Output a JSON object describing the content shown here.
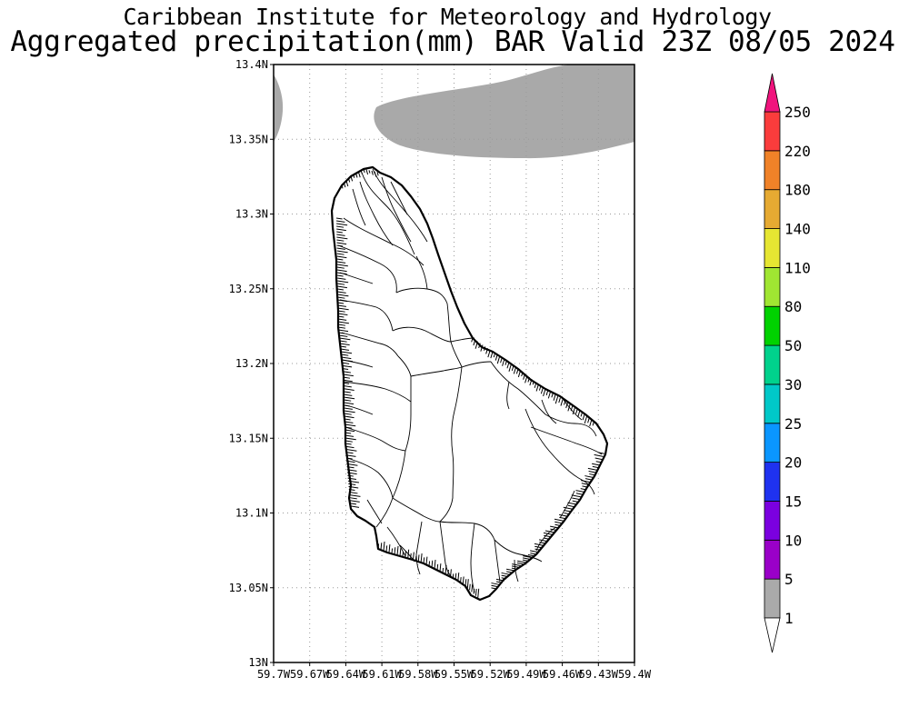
{
  "header": {
    "title_line1": "Caribbean Institute for Meteorology and Hydrology",
    "title_line2": "Aggregated precipitation(mm) BAR Valid 23Z 08/05 2024"
  },
  "map": {
    "lat_labels": [
      "13.4N",
      "13.35N",
      "13.3N",
      "13.25N",
      "13.2N",
      "13.15N",
      "13.1N",
      "13.05N",
      "13N"
    ],
    "lon_labels": [
      "59.7W",
      "59.67W",
      "59.64W",
      "59.61W",
      "59.58W",
      "59.55W",
      "59.52W",
      "59.49W",
      "59.46W",
      "59.43W",
      "59.4W"
    ],
    "lat_range": [
      13.0,
      13.4
    ],
    "lon_range": [
      -59.7,
      -59.4
    ],
    "grid": "dotted",
    "precip_fill_color": "#a9a9a9"
  },
  "colorbar": {
    "levels": [
      "1",
      "5",
      "10",
      "15",
      "20",
      "25",
      "30",
      "50",
      "80",
      "110",
      "140",
      "180",
      "220",
      "250"
    ],
    "colors": [
      "#aaaaaa",
      "#9a00c8",
      "#7b00e0",
      "#1f32f0",
      "#0a96ff",
      "#00c8c8",
      "#00d28c",
      "#00d200",
      "#a0e632",
      "#e6e632",
      "#e6aa32",
      "#f08228",
      "#fa3c3c",
      "#f0147d"
    ],
    "under_color": "#ffffff",
    "over_color": "#f0147d"
  }
}
